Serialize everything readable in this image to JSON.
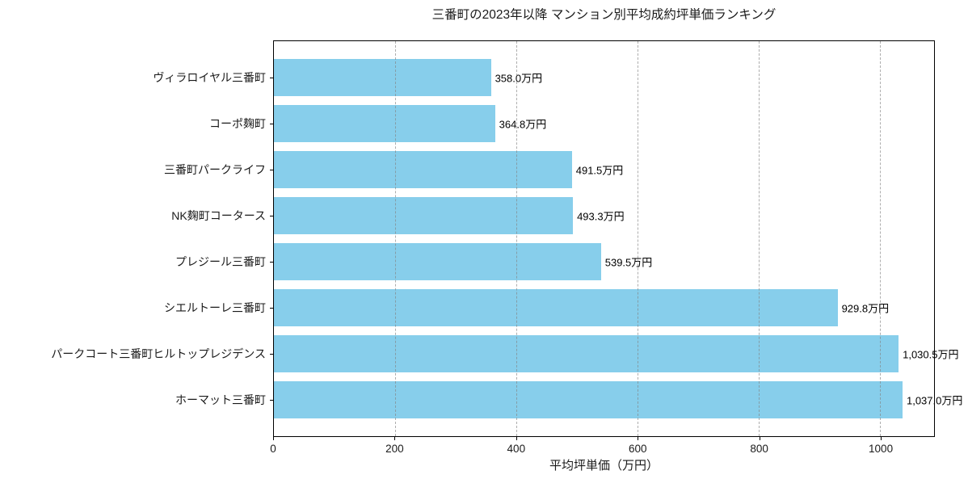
{
  "chart_data": {
    "type": "bar",
    "orientation": "horizontal",
    "title": "三番町の2023年以降 マンション別平均成約坪単価ランキング",
    "xlabel": "平均坪単価（万円）",
    "ylabel": "",
    "categories": [
      "ヴィラロイヤル三番町",
      "コーポ麹町",
      "三番町パークライフ",
      "NK麹町コータース",
      "プレジール三番町",
      "シエルトーレ三番町",
      "パークコート三番町ヒルトップレジデンス",
      "ホーマット三番町"
    ],
    "values": [
      358.0,
      364.8,
      491.5,
      493.3,
      539.5,
      929.8,
      1030.5,
      1037.0
    ],
    "value_labels": [
      "358.0万円",
      "364.8万円",
      "491.5万円",
      "493.3万円",
      "539.5万円",
      "929.8万円",
      "1,030.5万円",
      "1,037.0万円"
    ],
    "x_ticks": [
      0,
      200,
      400,
      600,
      800,
      1000
    ],
    "xlim": [
      0,
      1089
    ],
    "grid": "vertical-dashed-over-bars",
    "legend_position": "none",
    "colors": {
      "bar": "#87CEEB",
      "grid": "#828282",
      "spine": "#000000",
      "text": "#1a1a1a",
      "background": "#ffffff"
    }
  }
}
